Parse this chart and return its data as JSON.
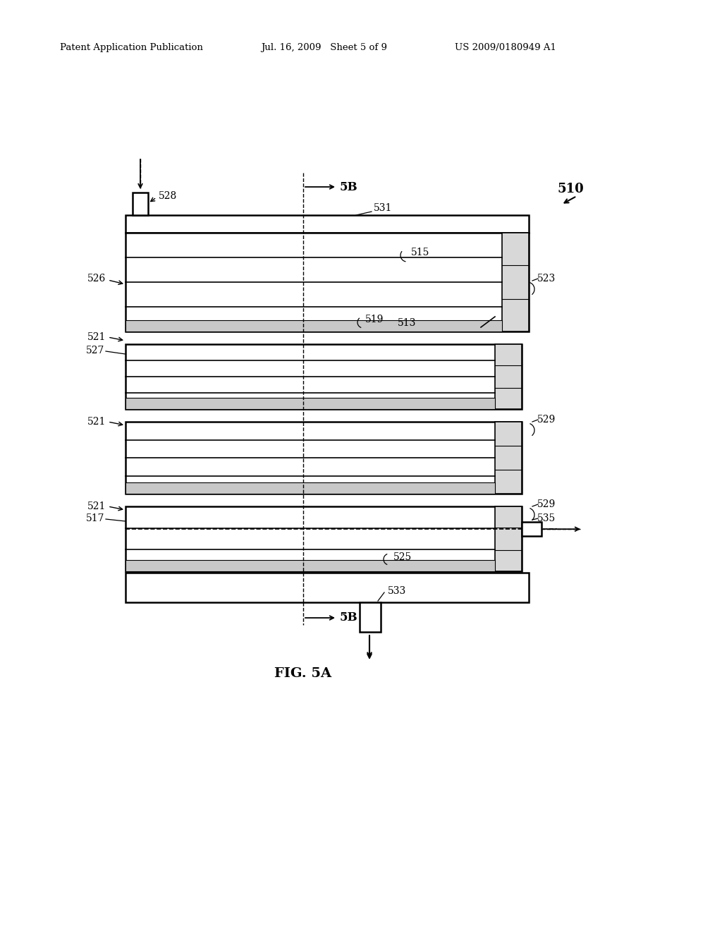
{
  "bg_color": "#ffffff",
  "header_left": "Patent Application Publication",
  "header_mid": "Jul. 16, 2009   Sheet 5 of 9",
  "header_right": "US 2009/0180949 A1",
  "fig_label": "FIG. 5A"
}
